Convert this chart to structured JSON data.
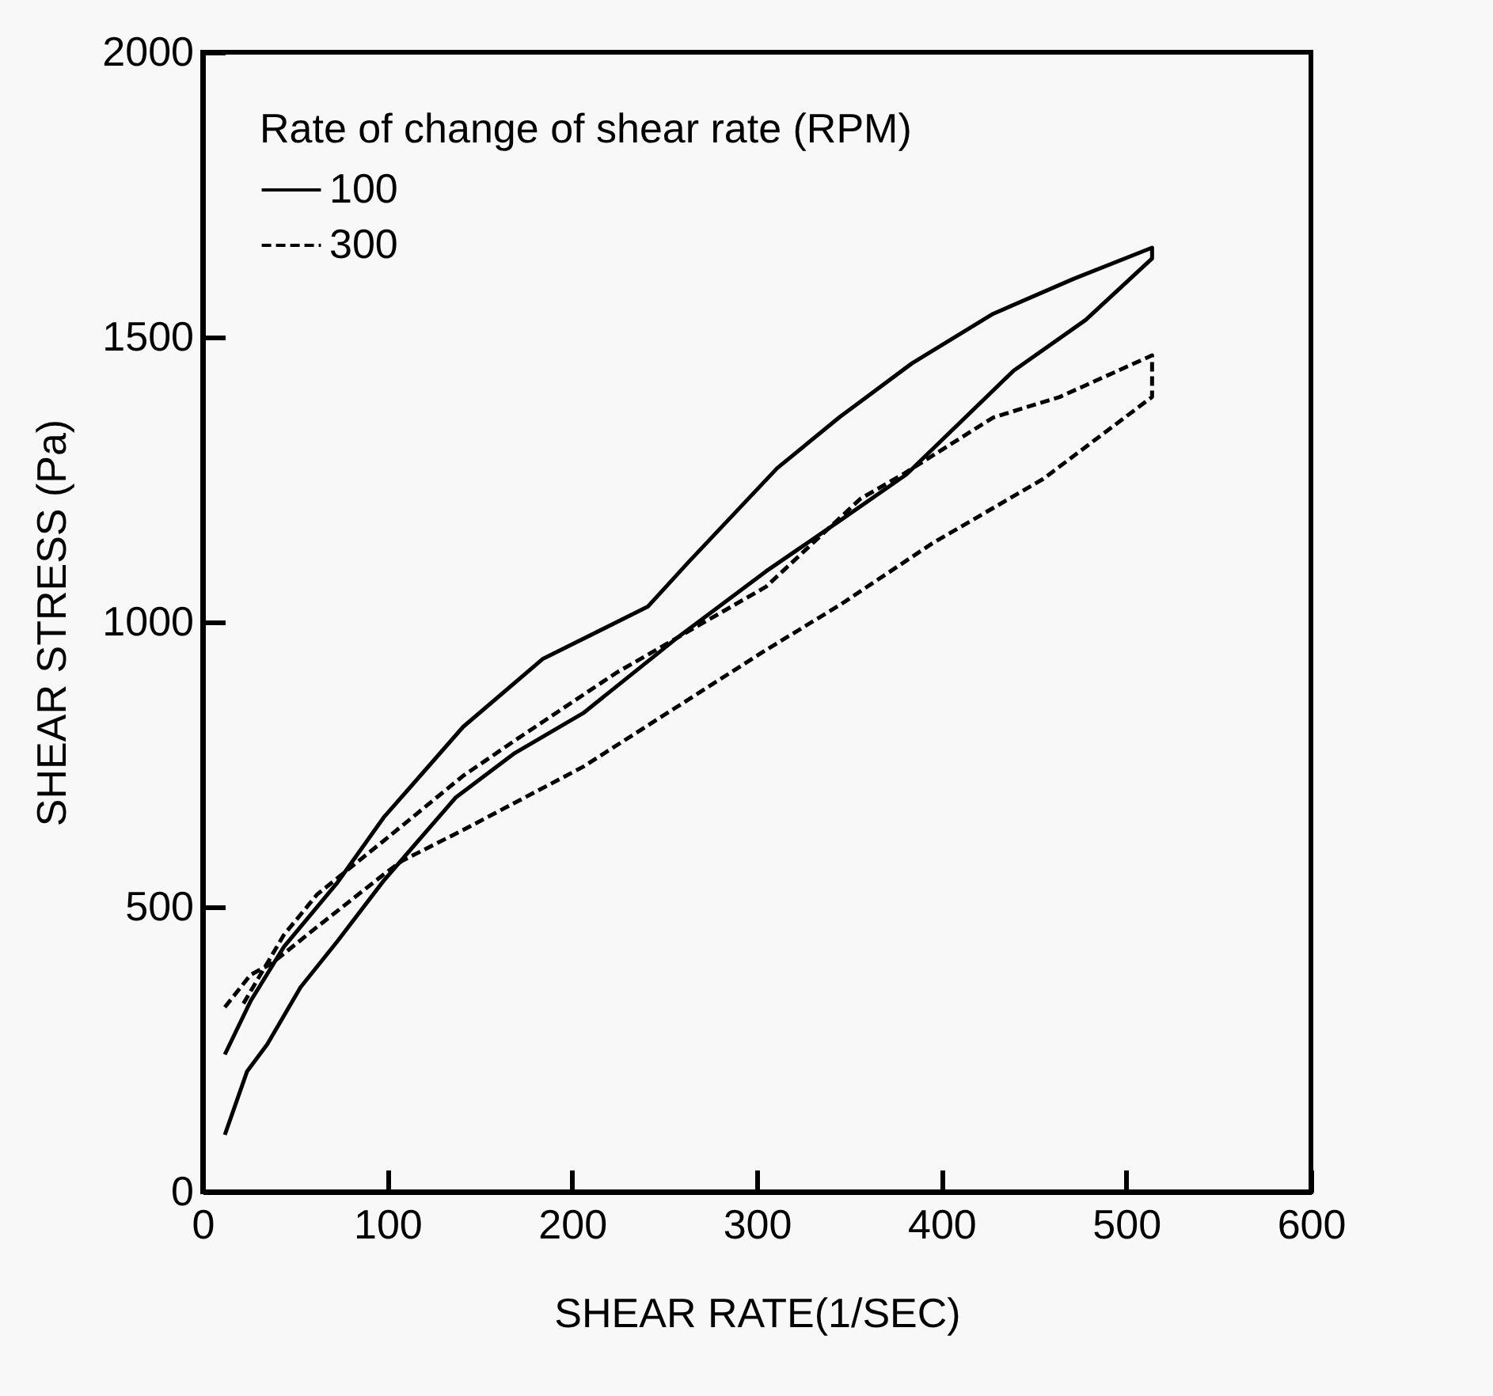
{
  "chart_data": {
    "type": "line",
    "xlabel": "SHEAR RATE(1/SEC)",
    "ylabel": "SHEAR STRESS (Pa)",
    "legend_title": "Rate of change of shear rate (RPM)",
    "legend": "top left",
    "grid": false,
    "marker": "none",
    "xlim": [
      0,
      600
    ],
    "xticks": [
      0,
      100,
      200,
      300,
      400,
      500,
      600
    ],
    "ylim": [
      0,
      2000
    ],
    "yticks": [
      0,
      500,
      1000,
      1500,
      2000
    ],
    "series": [
      {
        "name": "100",
        "color": "#000000",
        "line_style": "solid",
        "x": [
          12,
          24,
          35,
          53,
          73,
          98,
          137,
          169,
          206,
          256,
          305,
          345,
          381,
          439,
          478,
          514,
          514,
          472,
          428,
          384,
          345,
          311,
          263,
          241,
          184,
          141,
          98,
          73,
          44,
          26,
          12
        ],
        "values": [
          100,
          211,
          259,
          359,
          440,
          546,
          692,
          770,
          840,
          970,
          1089,
          1178,
          1259,
          1441,
          1530,
          1638,
          1657,
          1603,
          1541,
          1454,
          1360,
          1270,
          1105,
          1027,
          935,
          816,
          657,
          543,
          430,
          335,
          241
        ]
      },
      {
        "name": "300",
        "color": "#000000",
        "line_style": "dashed",
        "x": [
          12,
          26,
          37,
          62,
          98,
          108,
          141,
          206,
          305,
          345,
          395,
          455,
          514,
          514,
          464,
          428,
          379,
          356,
          305,
          224,
          169,
          141,
          98,
          62,
          44,
          22
        ],
        "values": [
          324,
          381,
          400,
          465,
          557,
          581,
          635,
          746,
          951,
          1030,
          1138,
          1251,
          1395,
          1468,
          1395,
          1359,
          1259,
          1216,
          1062,
          911,
          792,
          730,
          616,
          522,
          451,
          330
        ]
      }
    ]
  }
}
